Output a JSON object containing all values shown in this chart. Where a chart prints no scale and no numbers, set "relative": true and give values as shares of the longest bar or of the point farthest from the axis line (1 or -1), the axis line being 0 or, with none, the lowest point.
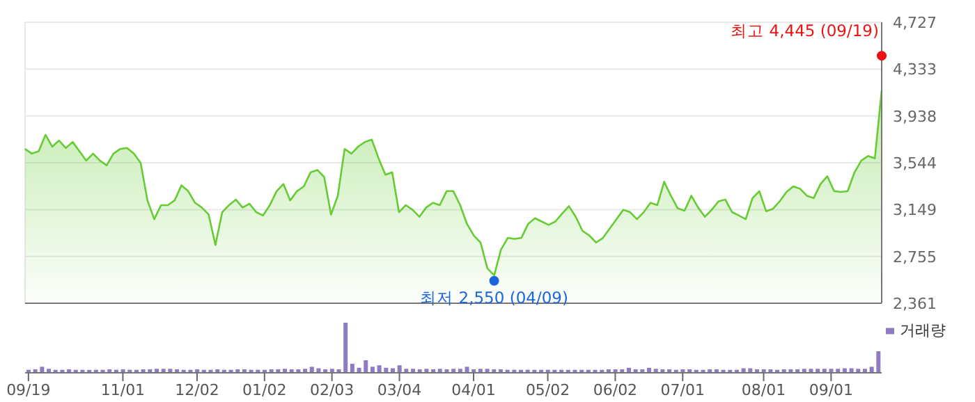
{
  "chart_data": [
    {
      "type": "area",
      "categories": [
        null,
        null,
        null,
        null,
        null,
        null,
        null,
        null,
        null,
        null,
        null,
        null,
        null,
        null,
        null,
        null,
        null,
        null,
        null,
        null,
        null,
        null,
        null,
        null,
        null,
        null,
        null,
        null,
        null,
        null,
        null,
        null,
        null,
        null,
        null,
        null,
        null,
        null,
        null,
        null,
        null,
        null,
        null,
        null,
        null,
        null,
        null,
        null,
        null,
        null,
        null,
        null,
        null,
        null,
        null,
        null,
        null,
        null,
        null,
        null,
        null,
        null,
        null,
        null,
        null,
        null,
        null,
        null,
        null,
        null,
        null,
        null,
        null,
        null,
        null,
        null,
        null,
        null,
        null,
        null,
        null,
        null,
        null,
        null,
        null,
        null,
        null,
        null,
        null,
        null,
        null,
        null,
        null,
        null,
        null,
        null,
        null,
        null,
        null,
        null,
        null,
        null,
        null,
        null,
        null,
        null,
        null,
        null,
        null,
        null,
        null,
        null,
        null,
        null,
        null,
        null,
        null,
        null,
        null,
        null,
        null,
        null,
        null,
        null,
        null,
        null,
        null
      ],
      "series": [
        {
          "color": "#66cc33",
          "values": [
            3660,
            3621,
            3640,
            3779,
            3680,
            3731,
            3668,
            3719,
            3640,
            3562,
            3621,
            3562,
            3522,
            3621,
            3660,
            3668,
            3621,
            3542,
            3227,
            3069,
            3187,
            3187,
            3227,
            3353,
            3305,
            3207,
            3167,
            3108,
            2852,
            3128,
            3187,
            3234,
            3167,
            3199,
            3128,
            3100,
            3187,
            3305,
            3365,
            3227,
            3305,
            3345,
            3463,
            3483,
            3424,
            3108,
            3266,
            3660,
            3621,
            3680,
            3719,
            3739,
            3581,
            3443,
            3463,
            3128,
            3187,
            3148,
            3089,
            3167,
            3207,
            3187,
            3305,
            3305,
            3187,
            3029,
            2931,
            2872,
            2655,
            2596,
            2813,
            2911,
            2903,
            2911,
            3029,
            3077,
            3049,
            3021,
            3049,
            3116,
            3179,
            3089,
            2970,
            2931,
            2872,
            2911,
            2990,
            3069,
            3148,
            3128,
            3069,
            3128,
            3207,
            3187,
            3384,
            3266,
            3160,
            3140,
            3266,
            3167,
            3089,
            3148,
            3219,
            3234,
            3128,
            3100,
            3069,
            3246,
            3305,
            3136,
            3156,
            3219,
            3298,
            3345,
            3325,
            3266,
            3246,
            3365,
            3431,
            3305,
            3298,
            3305,
            3463,
            3562,
            3601,
            3581,
            4153
          ]
        },
        {
          "type": "scatter",
          "color": "#ee1111",
          "values": [
            null,
            null,
            null,
            null,
            null,
            null,
            null,
            null,
            null,
            null,
            null,
            null,
            null,
            null,
            null,
            null,
            null,
            null,
            null,
            null,
            null,
            null,
            null,
            null,
            null,
            null,
            null,
            null,
            null,
            null,
            null,
            null,
            null,
            null,
            null,
            null,
            null,
            null,
            null,
            null,
            null,
            null,
            null,
            null,
            null,
            null,
            null,
            null,
            null,
            null,
            null,
            null,
            null,
            null,
            null,
            null,
            null,
            null,
            null,
            null,
            null,
            null,
            null,
            null,
            null,
            null,
            null,
            null,
            null,
            null,
            null,
            null,
            null,
            null,
            null,
            null,
            null,
            null,
            null,
            null,
            null,
            null,
            null,
            null,
            null,
            null,
            null,
            null,
            null,
            null,
            null,
            null,
            null,
            null,
            null,
            null,
            null,
            null,
            null,
            null,
            null,
            null,
            null,
            null,
            null,
            null,
            null,
            null,
            null,
            null,
            null,
            null,
            null,
            null,
            null,
            null,
            null,
            null,
            null,
            null,
            null,
            null,
            null,
            null,
            null,
            null,
            4445
          ]
        },
        {
          "type": "scatter",
          "color": "#1a66dd",
          "values": [
            null,
            null,
            null,
            null,
            null,
            null,
            null,
            null,
            null,
            null,
            null,
            null,
            null,
            null,
            null,
            null,
            null,
            null,
            null,
            null,
            null,
            null,
            null,
            null,
            null,
            null,
            null,
            null,
            null,
            null,
            null,
            null,
            null,
            null,
            null,
            null,
            null,
            null,
            null,
            null,
            null,
            null,
            null,
            null,
            null,
            null,
            null,
            null,
            null,
            null,
            null,
            null,
            null,
            null,
            null,
            null,
            null,
            null,
            null,
            null,
            null,
            null,
            null,
            null,
            null,
            null,
            null,
            null,
            null,
            2550,
            null,
            null,
            null,
            null,
            null,
            null,
            null,
            null,
            null,
            null,
            null,
            null,
            null,
            null,
            null,
            null,
            null,
            null,
            null,
            null,
            null,
            null,
            null,
            null,
            null,
            null,
            null,
            null,
            null,
            null,
            null,
            null,
            null,
            null,
            null,
            null,
            null,
            null,
            null,
            null,
            null,
            null,
            null,
            null,
            null,
            null,
            null,
            null,
            null,
            null,
            null,
            null,
            null,
            null,
            null,
            null,
            null
          ]
        }
      ],
      "ylim": [
        2361,
        4727
      ],
      "yticks": [
        {
          "value": 2361,
          "label": "2,361"
        },
        {
          "value": 2755,
          "label": "2,755"
        },
        {
          "value": 3149,
          "label": "3,149"
        },
        {
          "value": 3544,
          "label": "3,544"
        },
        {
          "value": 3938,
          "label": "3,938"
        },
        {
          "value": 4333,
          "label": "4,333"
        },
        {
          "value": 4727,
          "label": "4,727"
        }
      ],
      "grid": true,
      "tick_labels": "y",
      "annotations": [
        "최고 4,445 (09/19)",
        "최저 2,550 (04/09)"
      ]
    },
    {
      "type": "bar",
      "relative": true,
      "categories": [
        "09/19",
        null,
        null,
        null,
        null,
        null,
        null,
        null,
        null,
        null,
        null,
        null,
        null,
        null,
        "11/01",
        null,
        null,
        null,
        null,
        null,
        null,
        null,
        null,
        null,
        null,
        "12/02",
        null,
        null,
        null,
        null,
        null,
        null,
        null,
        null,
        null,
        "01/02",
        null,
        null,
        null,
        null,
        null,
        null,
        null,
        null,
        null,
        "02/03",
        null,
        null,
        null,
        null,
        null,
        null,
        null,
        null,
        null,
        "03/04",
        null,
        null,
        null,
        null,
        null,
        null,
        null,
        null,
        null,
        null,
        "04/01",
        null,
        null,
        null,
        null,
        null,
        null,
        null,
        null,
        null,
        null,
        "05/02",
        null,
        null,
        null,
        null,
        null,
        null,
        null,
        null,
        null,
        "06/02",
        null,
        null,
        null,
        null,
        null,
        null,
        null,
        null,
        null,
        "07/01",
        null,
        null,
        null,
        null,
        null,
        null,
        null,
        null,
        null,
        null,
        null,
        "08/01",
        null,
        null,
        null,
        null,
        null,
        null,
        null,
        null,
        null,
        "09/01",
        null,
        null,
        null,
        null,
        null,
        null,
        null
      ],
      "series": [
        {
          "name": "거래량",
          "color": "#8e7cc3",
          "values": [
            0.06,
            0.07,
            0.12,
            0.08,
            0.06,
            0.06,
            0.07,
            0.06,
            0.06,
            0.06,
            0.06,
            0.06,
            0.07,
            0.06,
            0.07,
            0.06,
            0.06,
            0.07,
            0.07,
            0.08,
            0.08,
            0.08,
            0.07,
            0.06,
            0.06,
            0.07,
            0.06,
            0.06,
            0.07,
            0.06,
            0.06,
            0.07,
            0.07,
            0.06,
            0.06,
            0.06,
            0.07,
            0.07,
            0.08,
            0.07,
            0.07,
            0.08,
            0.12,
            0.09,
            0.07,
            0.08,
            0.07,
            1,
            0.18,
            0.1,
            0.25,
            0.12,
            0.15,
            0.1,
            0.09,
            0.15,
            0.08,
            0.08,
            0.07,
            0.08,
            0.07,
            0.08,
            0.07,
            0.08,
            0.08,
            0.12,
            0.07,
            0.08,
            0.08,
            0.07,
            0.07,
            0.06,
            0.06,
            0.06,
            0.06,
            0.06,
            0.06,
            0.06,
            0.06,
            0.06,
            0.06,
            0.06,
            0.06,
            0.06,
            0.06,
            0.06,
            0.07,
            0.07,
            0.07,
            0.1,
            0.07,
            0.07,
            0.1,
            0.08,
            0.07,
            0.07,
            0.06,
            0.07,
            0.07,
            0.06,
            0.06,
            0.07,
            0.07,
            0.06,
            0.06,
            0.06,
            0.09,
            0.09,
            0.07,
            0.07,
            0.07,
            0.06,
            0.07,
            0.07,
            0.07,
            0.08,
            0.08,
            0.08,
            0.08,
            0.08,
            0.08,
            0.09,
            0.09,
            0.08,
            0.08,
            0.12,
            0.43
          ]
        }
      ],
      "legend": "top right",
      "tick_labels": "x",
      "grid": false
    }
  ]
}
